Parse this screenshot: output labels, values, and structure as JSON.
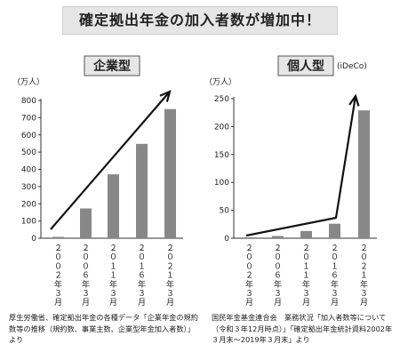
{
  "title": "確定拠出年金の加入者数が増加中！",
  "chart_data": [
    {
      "type": "bar",
      "title": "企業型",
      "subtitle": "",
      "unit_label": "（万人）",
      "categories": [
        "２００２年３月",
        "２００６年３月",
        "２０１１年３月",
        "２０１６年３月",
        "２０２１年３月"
      ],
      "values": [
        8,
        173,
        371,
        548,
        750
      ],
      "ylim": [
        0,
        800
      ],
      "yticks": [
        0,
        100,
        200,
        300,
        400,
        500,
        600,
        700,
        800
      ],
      "trend_arrow": true,
      "source": "厚生労働省、確定拠出年金の各種データ「企業年金の規約数等の推移（規約数、事業主数、企業型年金加入者数）」より"
    },
    {
      "type": "bar",
      "title": "個人型",
      "subtitle": "(iDeCo)",
      "unit_label": "（万人）",
      "categories": [
        "２００２年３月",
        "２００６年３月",
        "２０１１年３月",
        "２０１６年３月",
        "２０２１年３月"
      ],
      "values": [
        0.3,
        4,
        13,
        26,
        229
      ],
      "ylim": [
        0,
        250
      ],
      "yticks": [
        0,
        50,
        100,
        150,
        200,
        250
      ],
      "trend_arrow": true,
      "source": "国民年金基金連合会　業務状況「加入者数等について（令和３年12月時点）」「確定拠出年金統計資料2002年３月末～2019年３月末」より"
    }
  ]
}
